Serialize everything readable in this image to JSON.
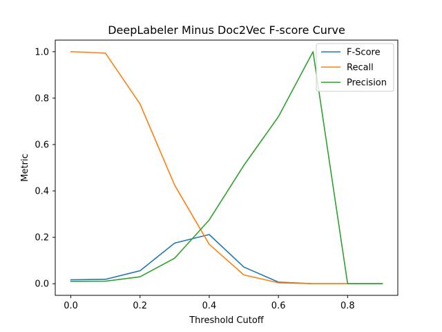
{
  "chart_data": {
    "type": "line",
    "title": "DeepLabeler Minus Doc2Vec F-score Curve",
    "xlabel": "Threshold Cutoff",
    "ylabel": "Metric",
    "xlim": [
      -0.045,
      0.945
    ],
    "ylim": [
      -0.05,
      1.05
    ],
    "xticks": [
      0.0,
      0.2,
      0.4,
      0.6,
      0.8
    ],
    "xtick_labels": [
      "0.0",
      "0.2",
      "0.4",
      "0.6",
      "0.8"
    ],
    "yticks": [
      0.0,
      0.2,
      0.4,
      0.6,
      0.8,
      1.0
    ],
    "ytick_labels": [
      "0.0",
      "0.2",
      "0.4",
      "0.6",
      "0.8",
      "1.0"
    ],
    "grid": false,
    "legend_position": "top-right",
    "x": [
      0.0,
      0.1,
      0.2,
      0.3,
      0.4,
      0.5,
      0.6,
      0.7,
      0.8,
      0.9
    ],
    "series": [
      {
        "name": "F-Score",
        "color": "#1f77b4",
        "values": [
          0.017,
          0.019,
          0.056,
          0.175,
          0.212,
          0.072,
          0.007,
          0.0,
          0.0,
          0.0
        ]
      },
      {
        "name": "Recall",
        "color": "#ff7f0e",
        "values": [
          1.0,
          0.994,
          0.775,
          0.425,
          0.17,
          0.038,
          0.004,
          0.0,
          0.0,
          0.0
        ]
      },
      {
        "name": "Precision",
        "color": "#2ca02c",
        "values": [
          0.01,
          0.011,
          0.03,
          0.11,
          0.275,
          0.51,
          0.72,
          1.0,
          0.0,
          0.0
        ]
      }
    ]
  }
}
